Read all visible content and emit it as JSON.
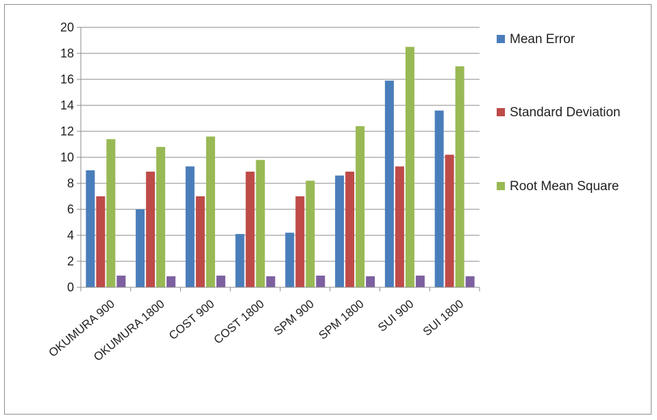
{
  "chart_data": {
    "type": "bar",
    "title": "",
    "xlabel": "",
    "ylabel": "",
    "ylim": [
      0,
      20
    ],
    "yticks": [
      0,
      2,
      4,
      6,
      8,
      10,
      12,
      14,
      16,
      18,
      20
    ],
    "grid": true,
    "legend_position": "right",
    "categories": [
      "OKUMURA 900",
      "OKUMURA 1800",
      "COST 900",
      "COST 1800",
      "SPM 900",
      "SPM 1800",
      "SUI 900",
      "SUI 1800"
    ],
    "series": [
      {
        "name": "Mean Error",
        "color": "#4a7ebb",
        "values": [
          9.0,
          6.0,
          9.3,
          4.1,
          4.2,
          8.6,
          15.9,
          13.6
        ]
      },
      {
        "name": "Standard Deviation",
        "color": "#be4b48",
        "values": [
          7.0,
          8.9,
          7.0,
          8.9,
          7.0,
          8.9,
          9.3,
          10.2
        ]
      },
      {
        "name": "Root Mean Square",
        "color": "#98b954",
        "values": [
          11.4,
          10.8,
          11.6,
          9.8,
          8.2,
          12.4,
          18.5,
          17.0
        ]
      },
      {
        "name": "",
        "color": "#7d60a0",
        "values": [
          0.9,
          0.85,
          0.9,
          0.85,
          0.9,
          0.85,
          0.9,
          0.85
        ],
        "in_legend": false
      }
    ]
  }
}
